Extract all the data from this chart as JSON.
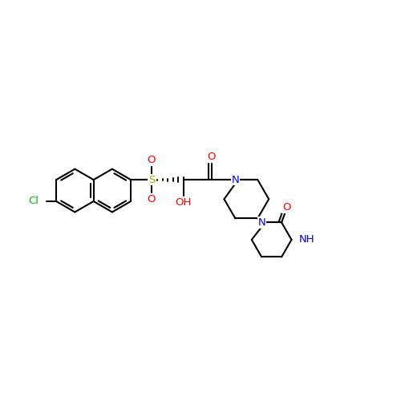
{
  "background_color": "#ffffff",
  "bond_color": "#000000",
  "bond_width": 1.5,
  "figsize": [
    5.0,
    5.0
  ],
  "dpi": 100,
  "colors": {
    "Cl": "#00bb00",
    "S": "#aaaa00",
    "O": "#ff0000",
    "N": "#0000ff",
    "C": "#000000"
  },
  "fontsize": 9.5,
  "xlim": [
    0,
    10
  ],
  "ylim": [
    0,
    10
  ]
}
